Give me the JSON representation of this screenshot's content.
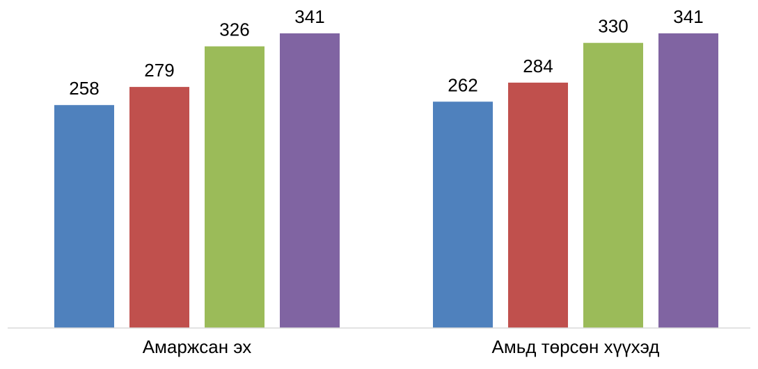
{
  "chart_data": {
    "type": "bar",
    "title": "",
    "xlabel": "",
    "ylabel": "",
    "categories": [
      "Амаржсан эх",
      "Амьд төрсөн хүүхэд"
    ],
    "series": [
      {
        "color": "#4F81BD",
        "values": [
          258,
          262
        ]
      },
      {
        "color": "#C0504D",
        "values": [
          279,
          284
        ]
      },
      {
        "color": "#9BBB59",
        "values": [
          326,
          330
        ]
      },
      {
        "color": "#8064A2",
        "values": [
          341,
          341
        ]
      }
    ],
    "data_labels": true,
    "ylim": [
      0,
      380
    ],
    "legend": "none",
    "grid": false,
    "axis_color": "#D9D9D9"
  }
}
